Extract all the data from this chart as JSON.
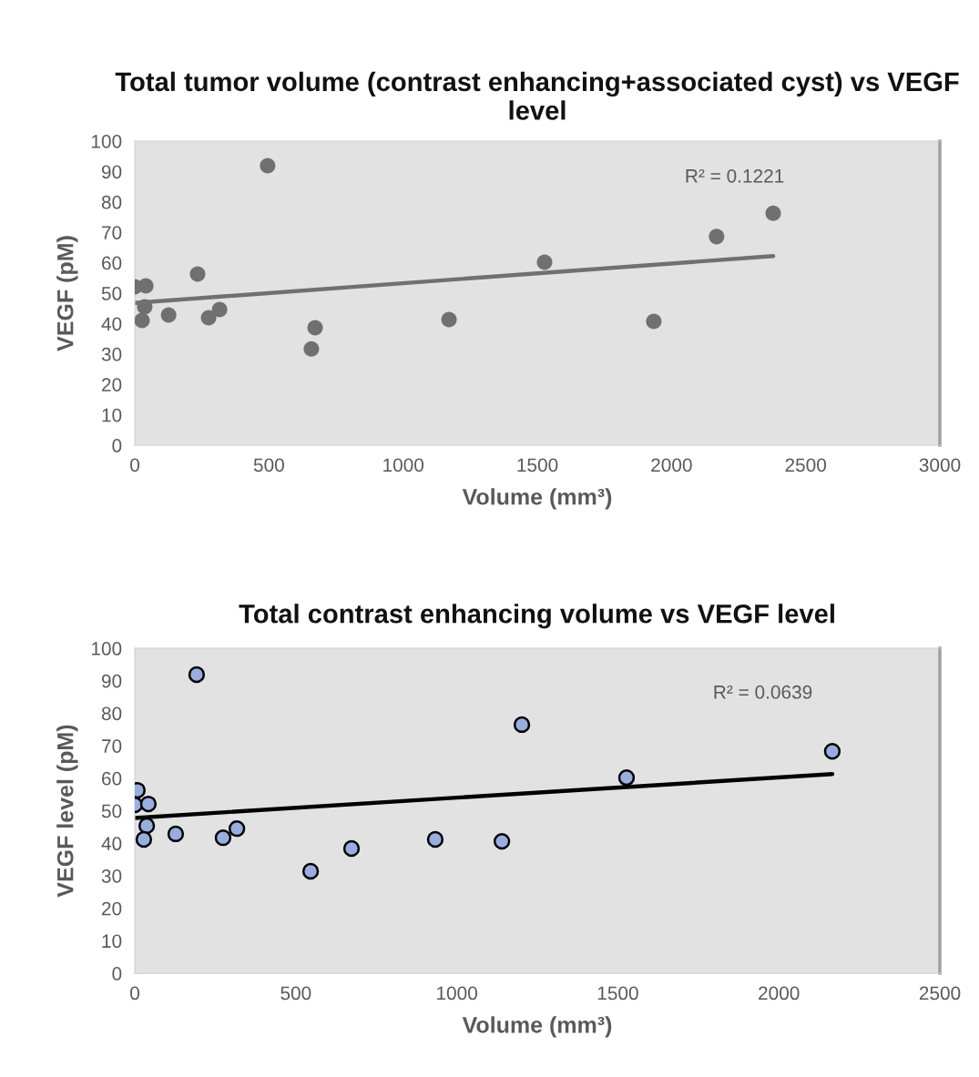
{
  "chart_data": [
    {
      "type": "scatter",
      "title": "Total tumor volume (contrast enhancing+associated cyst) vs VEGF level",
      "xlabel": "Volume (mm³)",
      "ylabel": "VEGF (pM)",
      "xlim": [
        0,
        3000
      ],
      "xticks": [
        0,
        500,
        1000,
        1500,
        2000,
        2500,
        3000
      ],
      "ylim": [
        0,
        100
      ],
      "yticks": [
        0,
        10,
        20,
        30,
        40,
        50,
        60,
        70,
        80,
        90,
        100
      ],
      "grid": false,
      "legend": false,
      "annotations": [
        "R² = 0.1221"
      ],
      "series": [
        {
          "marker": "circle",
          "color": "#707070",
          "x": [
            0,
            41,
            37,
            27,
            126,
            234,
            275,
            316,
            495,
            672,
            658,
            1171,
            1527,
            1934,
            2168,
            2379
          ],
          "values": [
            52.1,
            52.4,
            45.5,
            41,
            42.8,
            56.3,
            41.9,
            44.6,
            91.9,
            38.6,
            31.7,
            41.3,
            60.2,
            40.7,
            68.6,
            76.3
          ]
        },
        {
          "type": "line",
          "marker": "none",
          "color": "#707070",
          "x": [
            0,
            2379
          ],
          "values": [
            46.8,
            62.2
          ]
        }
      ]
    },
    {
      "type": "scatter",
      "title": "Total contrast enhancing volume vs VEGF level",
      "xlabel": "Volume (mm³)",
      "ylabel": "VEGF level (pM)",
      "xlim": [
        0,
        2500
      ],
      "xticks": [
        0,
        500,
        1000,
        1500,
        2000,
        2500
      ],
      "ylim": [
        0,
        100
      ],
      "yticks": [
        0,
        10,
        20,
        30,
        40,
        50,
        60,
        70,
        80,
        90,
        100
      ],
      "grid": false,
      "legend": false,
      "annotations": [
        "R² = 0.0639"
      ],
      "series": [
        {
          "marker": "circle",
          "color": "#98aee0",
          "x": [
            0,
            8,
            42,
            37,
            28,
            127,
            274,
            317,
            192,
            546,
            673,
            933,
            1140,
            1202,
            1527,
            2166
          ],
          "values": [
            51.8,
            56.3,
            52.1,
            45.4,
            41.2,
            42.9,
            41.7,
            44.5,
            91.9,
            31.4,
            38.4,
            41.2,
            40.6,
            76.5,
            60.2,
            68.3
          ]
        },
        {
          "type": "line",
          "marker": "none",
          "color": "#000000",
          "x": [
            0,
            2166
          ],
          "values": [
            47.8,
            61.3
          ]
        }
      ]
    }
  ]
}
